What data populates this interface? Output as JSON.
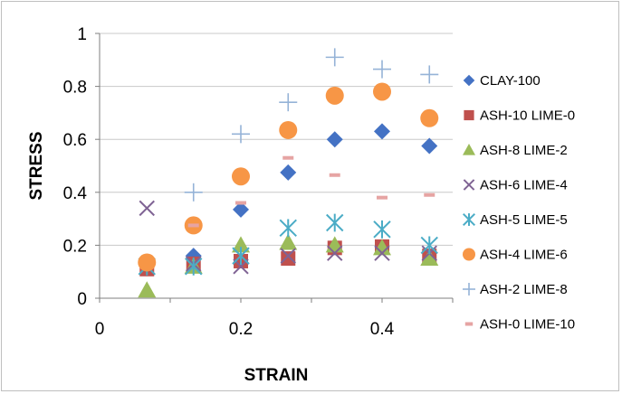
{
  "chart_data": {
    "type": "scatter",
    "title": "",
    "xlabel": "STRAIN",
    "ylabel": "STRESS",
    "xlim": [
      0,
      0.5
    ],
    "ylim": [
      0,
      1
    ],
    "x_ticks": [
      0,
      0.2,
      0.4
    ],
    "x_tick_labels": [
      "0",
      "0.2",
      "0.4"
    ],
    "y_ticks": [
      0,
      0.2,
      0.4,
      0.6,
      0.8,
      1
    ],
    "y_tick_labels": [
      "0",
      "0.2",
      "0.4",
      "0.6",
      "0.8",
      "1"
    ],
    "grid": "horizontal major gridlines",
    "legend_position": "right",
    "series": [
      {
        "name": "CLAY-100",
        "marker": "diamond",
        "color": "#4472c4",
        "points": [
          [
            0.133,
            0.16
          ],
          [
            0.2,
            0.335
          ],
          [
            0.267,
            0.475
          ],
          [
            0.333,
            0.6
          ],
          [
            0.4,
            0.63
          ],
          [
            0.467,
            0.575
          ]
        ]
      },
      {
        "name": "ASH-10 LIME-0",
        "marker": "square",
        "color": "#c0504d",
        "points": [
          [
            0.067,
            0.11
          ],
          [
            0.133,
            0.13
          ],
          [
            0.2,
            0.14
          ],
          [
            0.267,
            0.15
          ],
          [
            0.333,
            0.19
          ],
          [
            0.4,
            0.195
          ],
          [
            0.467,
            0.16
          ]
        ]
      },
      {
        "name": "ASH-8 LIME-2",
        "marker": "triangle",
        "color": "#9bbb59",
        "points": [
          [
            0.067,
            0.03
          ],
          [
            0.133,
            0.12
          ],
          [
            0.2,
            0.2
          ],
          [
            0.267,
            0.21
          ],
          [
            0.333,
            0.2
          ],
          [
            0.4,
            0.19
          ],
          [
            0.467,
            0.15
          ]
        ]
      },
      {
        "name": "ASH-6 LIME-4",
        "marker": "x",
        "color": "#7f6394",
        "points": [
          [
            0.067,
            0.34
          ],
          [
            0.133,
            0.13
          ],
          [
            0.2,
            0.12
          ],
          [
            0.267,
            0.16
          ],
          [
            0.333,
            0.17
          ],
          [
            0.4,
            0.17
          ],
          [
            0.467,
            0.17
          ]
        ]
      },
      {
        "name": "ASH-5 LIME-5",
        "marker": "star",
        "color": "#4bacc6",
        "points": [
          [
            0.067,
            0.12
          ],
          [
            0.133,
            0.12
          ],
          [
            0.2,
            0.16
          ],
          [
            0.267,
            0.265
          ],
          [
            0.333,
            0.285
          ],
          [
            0.4,
            0.26
          ],
          [
            0.467,
            0.2
          ]
        ]
      },
      {
        "name": "ASH-4 LIME-6",
        "marker": "circle",
        "color": "#f79646",
        "points": [
          [
            0.067,
            0.135
          ],
          [
            0.133,
            0.275
          ],
          [
            0.2,
            0.46
          ],
          [
            0.267,
            0.635
          ],
          [
            0.333,
            0.765
          ],
          [
            0.4,
            0.78
          ],
          [
            0.467,
            0.68
          ]
        ]
      },
      {
        "name": "ASH-2 LIME-8",
        "marker": "plus",
        "color": "#95b3d7",
        "points": [
          [
            0.133,
            0.4
          ],
          [
            0.2,
            0.62
          ],
          [
            0.267,
            0.74
          ],
          [
            0.333,
            0.91
          ],
          [
            0.4,
            0.865
          ],
          [
            0.467,
            0.845
          ]
        ]
      },
      {
        "name": "ASH-0 LIME-10",
        "marker": "dash",
        "color": "#e6a4a3",
        "points": [
          [
            0.133,
            0.275
          ],
          [
            0.2,
            0.36
          ],
          [
            0.267,
            0.53
          ],
          [
            0.333,
            0.465
          ],
          [
            0.4,
            0.38
          ],
          [
            0.467,
            0.39
          ]
        ]
      }
    ]
  }
}
